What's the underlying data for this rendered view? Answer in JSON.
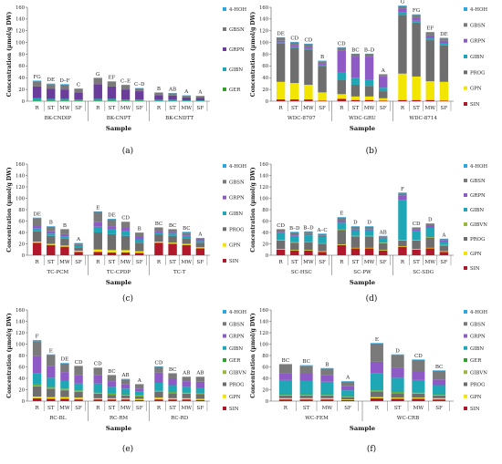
{
  "chart_data": [
    {
      "type": "bar",
      "panel_label": "(a)",
      "xlabel": "Sample",
      "ylabel": "Concentration (µmol/g DW)",
      "ylim": [
        0,
        160
      ],
      "yticks": [
        0,
        20,
        40,
        60,
        80,
        100,
        120,
        140,
        160
      ],
      "subcategories": [
        "R",
        "ST",
        "MW",
        "SF"
      ],
      "groups": [
        "BK-CNDIP",
        "BK-CNPT",
        "BK-CNDTT"
      ],
      "stacked": true,
      "series": [
        {
          "name": "GER",
          "color": "#33a02c",
          "values": [
            1,
            1,
            1,
            1,
            1,
            1,
            1,
            1,
            0.5,
            0.5,
            0.5,
            0.5
          ]
        },
        {
          "name": "GIBN",
          "color": "#1fa7b5",
          "values": [
            4,
            3,
            3,
            2,
            3,
            3,
            2,
            2,
            2,
            2,
            1,
            1
          ]
        },
        {
          "name": "GRPN",
          "color": "#6a3d9a",
          "values": [
            20,
            17,
            16,
            12,
            25,
            21,
            17,
            14,
            8,
            7,
            5,
            4
          ]
        },
        {
          "name": "GBSN",
          "color": "#7a7a7a",
          "values": [
            9,
            8,
            8,
            6,
            10,
            8,
            7,
            5,
            4,
            4,
            3,
            3
          ]
        },
        {
          "name": "4-HOH",
          "color": "#2aa6e0",
          "values": [
            1,
            1,
            1,
            0.5,
            1,
            1,
            1,
            0.5,
            0.5,
            0.5,
            0.5,
            0.5
          ]
        }
      ],
      "annotations": [
        "FG",
        "DE",
        "D–F",
        "C",
        "G",
        "EF",
        "C–E",
        "C–D",
        "B",
        "AB",
        "A",
        "A"
      ]
    },
    {
      "type": "bar",
      "panel_label": "(b)",
      "xlabel": "Sample",
      "ylabel": "Concentration (µmol/g DW)",
      "ylim": [
        0,
        160
      ],
      "yticks": [
        0,
        20,
        40,
        60,
        80,
        100,
        120,
        140,
        160
      ],
      "subcategories": [
        "R",
        "ST",
        "MW",
        "SF"
      ],
      "groups": [
        "WDC-8707",
        "WDC-GRU",
        "WDC-8714"
      ],
      "stacked": true,
      "series": [
        {
          "name": "SIN",
          "color": "#b2182b",
          "values": [
            3,
            3,
            3,
            1,
            4,
            2,
            2,
            1,
            2,
            2,
            2,
            1
          ]
        },
        {
          "name": "GPN",
          "color": "#f2e600",
          "values": [
            30,
            28,
            25,
            14,
            8,
            6,
            6,
            4,
            45,
            40,
            32,
            32
          ]
        },
        {
          "name": "PROG",
          "color": "#6e6e6e",
          "values": [
            65,
            60,
            60,
            45,
            25,
            20,
            18,
            12,
            100,
            92,
            70,
            62
          ]
        },
        {
          "name": "GIBN",
          "color": "#1fa7b5",
          "values": [
            2,
            2,
            2,
            2,
            12,
            12,
            10,
            6,
            4,
            3,
            3,
            3
          ]
        },
        {
          "name": "GRPN",
          "color": "#8e5bc6",
          "values": [
            3,
            3,
            3,
            3,
            37,
            36,
            40,
            20,
            6,
            5,
            5,
            5
          ]
        },
        {
          "name": "GBSN",
          "color": "#7a7a7a",
          "values": [
            5,
            4,
            4,
            3,
            5,
            4,
            4,
            2,
            5,
            5,
            5,
            4
          ]
        },
        {
          "name": "4-HOH",
          "color": "#2aa6e0",
          "values": [
            1,
            1,
            1,
            1,
            1,
            1,
            1,
            1,
            1,
            1,
            1,
            1
          ]
        }
      ],
      "annotations": [
        "DE",
        "CD",
        "CD",
        "B",
        "CD",
        "BC",
        "B–D",
        "A",
        "G",
        "FG",
        "EF",
        "DE"
      ]
    },
    {
      "type": "bar",
      "panel_label": "(c)",
      "xlabel": "Sample",
      "ylabel": "Concentration (µmol/g DW)",
      "ylim": [
        0,
        160
      ],
      "yticks": [
        0,
        20,
        40,
        60,
        80,
        100,
        120,
        140,
        160
      ],
      "subcategories": [
        "R",
        "ST",
        "MW",
        "SF"
      ],
      "groups": [
        "TC-PCM",
        "TC-CPDP",
        "TC-T"
      ],
      "stacked": true,
      "series": [
        {
          "name": "SIN",
          "color": "#b2182b",
          "values": [
            22,
            18,
            15,
            6,
            6,
            5,
            5,
            4,
            22,
            20,
            18,
            12
          ]
        },
        {
          "name": "GPN",
          "color": "#f2e600",
          "values": [
            2,
            2,
            2,
            2,
            4,
            4,
            4,
            3,
            2,
            2,
            2,
            2
          ]
        },
        {
          "name": "PROG",
          "color": "#6e6e6e",
          "values": [
            18,
            14,
            12,
            6,
            30,
            28,
            25,
            15,
            12,
            12,
            10,
            8
          ]
        },
        {
          "name": "GIBN",
          "color": "#1fa7b5",
          "values": [
            5,
            4,
            4,
            2,
            10,
            8,
            8,
            6,
            4,
            4,
            4,
            3
          ]
        },
        {
          "name": "GRPN",
          "color": "#8e5bc6",
          "values": [
            5,
            4,
            4,
            2,
            8,
            6,
            6,
            4,
            3,
            3,
            3,
            3
          ]
        },
        {
          "name": "GBSN",
          "color": "#7a7a7a",
          "values": [
            13,
            8,
            8,
            3,
            18,
            12,
            10,
            7,
            5,
            4,
            3,
            2
          ]
        },
        {
          "name": "4-HOH",
          "color": "#2aa6e0",
          "values": [
            1,
            1,
            1,
            0.5,
            1,
            1,
            1,
            1,
            1,
            1,
            1,
            0.5
          ]
        }
      ],
      "annotations": [
        "DE",
        "B",
        "B",
        "A",
        "E",
        "DE",
        "CD",
        "B",
        "BC",
        "BC",
        "BC",
        "A"
      ]
    },
    {
      "type": "bar",
      "panel_label": "(d)",
      "xlabel": "Sample",
      "ylabel": "Concentration (µmol/g DW)",
      "ylim": [
        0,
        160
      ],
      "yticks": [
        0,
        20,
        40,
        60,
        80,
        100,
        120,
        140,
        160
      ],
      "subcategories": [
        "R",
        "ST",
        "MW",
        "SF"
      ],
      "groups": [
        "SC-HSC",
        "SC-PW",
        "SC-SDG"
      ],
      "stacked": true,
      "series": [
        {
          "name": "SIN",
          "color": "#b2182b",
          "values": [
            10,
            8,
            8,
            6,
            18,
            12,
            12,
            8,
            15,
            10,
            12,
            6
          ]
        },
        {
          "name": "GPN",
          "color": "#f2e600",
          "values": [
            1,
            1,
            1,
            1,
            1,
            1,
            1,
            1,
            1,
            1,
            1,
            1
          ]
        },
        {
          "name": "PROG",
          "color": "#6e6e6e",
          "values": [
            15,
            13,
            14,
            13,
            25,
            20,
            20,
            12,
            10,
            15,
            18,
            10
          ]
        },
        {
          "name": "GIBVN",
          "color": "#9ab83b",
          "values": [
            1,
            1,
            1,
            1,
            1,
            1,
            1,
            1,
            1,
            1,
            1,
            1
          ]
        },
        {
          "name": "GIBN",
          "color": "#1fa7b5",
          "values": [
            12,
            11,
            11,
            11,
            12,
            10,
            10,
            7,
            70,
            15,
            16,
            6
          ]
        },
        {
          "name": "GRPN",
          "color": "#8e5bc6",
          "values": [
            2,
            2,
            2,
            2,
            3,
            2,
            2,
            2,
            8,
            3,
            4,
            2
          ]
        },
        {
          "name": "GBSN",
          "color": "#7a7a7a",
          "values": [
            4,
            4,
            4,
            3,
            6,
            4,
            4,
            2,
            3,
            3,
            3,
            2
          ]
        },
        {
          "name": "4-HOH",
          "color": "#2aa6e0",
          "values": [
            1,
            1,
            1,
            1,
            1,
            1,
            1,
            1,
            2,
            1,
            1,
            1
          ]
        }
      ],
      "annotations": [
        "CD",
        "B–D",
        "B–D",
        "A–C",
        "E",
        "D",
        "D",
        "AB",
        "F",
        "CD",
        "D",
        "A"
      ]
    },
    {
      "type": "bar",
      "panel_label": "(e)",
      "xlabel": "Sample",
      "ylabel": "Concentration (µmol/g DW)",
      "ylim": [
        0,
        160
      ],
      "yticks": [
        0,
        20,
        40,
        60,
        80,
        100,
        120,
        140,
        160
      ],
      "subcategories": [
        "R",
        "ST",
        "MW",
        "SF"
      ],
      "groups": [
        "RC-BL",
        "RC-RM",
        "RC-RD"
      ],
      "stacked": true,
      "series": [
        {
          "name": "SIN",
          "color": "#b2182b",
          "values": [
            5,
            4,
            4,
            3,
            3,
            3,
            3,
            2,
            3,
            3,
            3,
            2
          ]
        },
        {
          "name": "GPN",
          "color": "#f2e600",
          "values": [
            3,
            3,
            3,
            3,
            2,
            2,
            2,
            2,
            3,
            2,
            2,
            2
          ]
        },
        {
          "name": "PROG",
          "color": "#6e6e6e",
          "values": [
            18,
            15,
            12,
            10,
            8,
            6,
            5,
            4,
            10,
            9,
            8,
            8
          ]
        },
        {
          "name": "GIBVN",
          "color": "#9ab83b",
          "values": [
            2,
            2,
            2,
            2,
            1,
            1,
            1,
            1,
            1,
            1,
            1,
            1
          ]
        },
        {
          "name": "GER",
          "color": "#33a02c",
          "values": [
            1,
            1,
            1,
            1,
            1,
            1,
            1,
            1,
            1,
            1,
            1,
            1
          ]
        },
        {
          "name": "GIBN",
          "color": "#1fa7b5",
          "values": [
            20,
            16,
            14,
            12,
            16,
            12,
            10,
            7,
            14,
            12,
            10,
            10
          ]
        },
        {
          "name": "GRPN",
          "color": "#8e5bc6",
          "values": [
            30,
            20,
            15,
            15,
            15,
            10,
            8,
            5,
            18,
            12,
            10,
            10
          ]
        },
        {
          "name": "GBSN",
          "color": "#7a7a7a",
          "values": [
            26,
            20,
            15,
            15,
            12,
            10,
            8,
            7,
            10,
            8,
            7,
            8
          ]
        },
        {
          "name": "4-HOH",
          "color": "#2aa6e0",
          "values": [
            2,
            1,
            1,
            1,
            1,
            1,
            1,
            1,
            1,
            1,
            1,
            1
          ]
        }
      ],
      "annotations": [
        "F",
        "E",
        "DE",
        "CD",
        "CD",
        "BC",
        "AB",
        "A",
        "CD",
        "BC",
        "AB",
        "AB"
      ]
    },
    {
      "type": "bar",
      "panel_label": "(f)",
      "xlabel": "Sample",
      "ylabel": "Concentration (µmol/g DW)",
      "ylim": [
        0,
        160
      ],
      "yticks": [
        0,
        20,
        40,
        60,
        80,
        100,
        120,
        140,
        160
      ],
      "subcategories": [
        "R",
        "ST",
        "MW",
        "SF"
      ],
      "groups": [
        "WC-FEM",
        "WC-CRB"
      ],
      "stacked": true,
      "series": [
        {
          "name": "SIN",
          "color": "#b2182b",
          "values": [
            3,
            3,
            3,
            2,
            5,
            4,
            4,
            3
          ]
        },
        {
          "name": "GPN",
          "color": "#f2e600",
          "values": [
            2,
            2,
            2,
            1,
            2,
            2,
            2,
            2
          ]
        },
        {
          "name": "PROG",
          "color": "#6e6e6e",
          "values": [
            5,
            5,
            5,
            4,
            10,
            8,
            7,
            5
          ]
        },
        {
          "name": "GIBVN",
          "color": "#9ab83b",
          "values": [
            1,
            1,
            1,
            1,
            1,
            1,
            1,
            1
          ]
        },
        {
          "name": "GER",
          "color": "#33a02c",
          "values": [
            1,
            1,
            1,
            1,
            1,
            1,
            1,
            1
          ]
        },
        {
          "name": "GIBN",
          "color": "#1fa7b5",
          "values": [
            25,
            24,
            22,
            10,
            30,
            25,
            22,
            16
          ]
        },
        {
          "name": "GRPN",
          "color": "#8e5bc6",
          "values": [
            12,
            12,
            11,
            7,
            20,
            18,
            15,
            10
          ]
        },
        {
          "name": "GBSN",
          "color": "#7a7a7a",
          "values": [
            15,
            14,
            12,
            8,
            32,
            22,
            20,
            15
          ]
        },
        {
          "name": "4-HOH",
          "color": "#2aa6e0",
          "values": [
            1,
            1,
            1,
            1,
            1,
            1,
            1,
            1
          ]
        }
      ],
      "annotations": [
        "BC",
        "BC",
        "B",
        "A",
        "E",
        "D",
        "CD",
        "BC"
      ]
    }
  ]
}
